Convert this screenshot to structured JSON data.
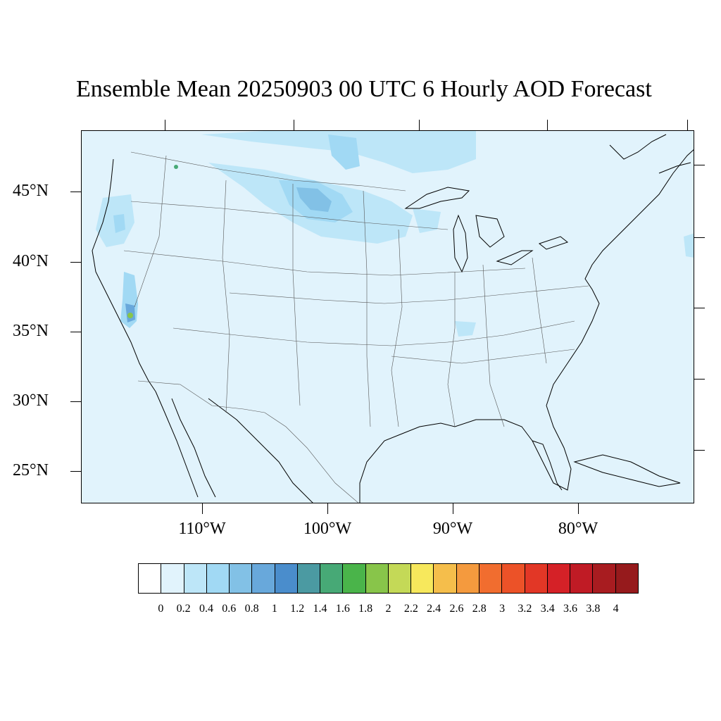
{
  "title": "Ensemble Mean 20250903 00 UTC 6 Hourly AOD Forecast",
  "map": {
    "projection": "lambert-conformal",
    "region": "CONUS",
    "background_color": "#e1f3fc",
    "lat_labels": [
      "45°N",
      "40°N",
      "35°N",
      "30°N",
      "25°N"
    ],
    "lon_labels": [
      "110°W",
      "100°W",
      "90°W",
      "80°W"
    ],
    "features": [
      {
        "type": "enhanced-aod",
        "area": "northern-plains",
        "level": "0.4-0.8"
      },
      {
        "type": "enhanced-aod",
        "area": "southern-california-sierra",
        "level": "0.4-2.0"
      },
      {
        "type": "enhanced-aod",
        "area": "oregon-cascades",
        "level": "0.4-0.8"
      },
      {
        "type": "enhanced-aod",
        "area": "southern-canada",
        "level": "0.2-0.6"
      }
    ]
  },
  "colorbar": {
    "colors": [
      "#ffffff",
      "#e1f3fc",
      "#bde6f8",
      "#a1d9f4",
      "#82c1e6",
      "#68a8db",
      "#4a8dcc",
      "#4b9aa2",
      "#47a976",
      "#4ab44a",
      "#88c54a",
      "#c4d957",
      "#f7e85c",
      "#f5be4b",
      "#f49a3e",
      "#f16d2f",
      "#ec5228",
      "#e23726",
      "#d52127",
      "#c01b25",
      "#a81c20",
      "#961a1c"
    ],
    "labels": [
      "0",
      "0.2",
      "0.4",
      "0.6",
      "0.8",
      "1",
      "1.2",
      "1.4",
      "1.6",
      "1.8",
      "2",
      "2.2",
      "2.4",
      "2.6",
      "2.8",
      "3",
      "3.2",
      "3.4",
      "3.6",
      "3.8",
      "4"
    ]
  }
}
